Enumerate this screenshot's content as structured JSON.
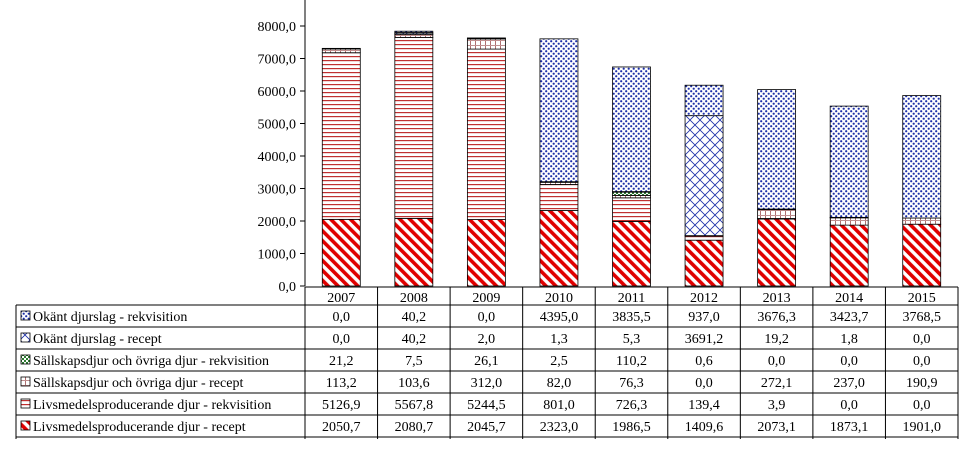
{
  "chart_data": {
    "type": "bar",
    "stacked": true,
    "title": "",
    "xlabel": "",
    "ylabel": "",
    "ylim": [
      0,
      8000
    ],
    "y_ticks": [
      "0,0",
      "1000,0",
      "2000,0",
      "3000,0",
      "4000,0",
      "5000,0",
      "6000,0",
      "7000,0",
      "8000,0"
    ],
    "categories": [
      "2007",
      "2008",
      "2009",
      "2010",
      "2011",
      "2012",
      "2013",
      "2014",
      "2015"
    ],
    "series": [
      {
        "name": "Livsmedelsproducerande djur - recept",
        "color": "#e00000",
        "pattern": "diagonal-stripes",
        "values": [
          2050.7,
          2080.7,
          2045.7,
          2323.0,
          1986.5,
          1409.6,
          2073.1,
          1873.1,
          1901.0
        ],
        "labels": [
          "2050,7",
          "2080,7",
          "2045,7",
          "2323,0",
          "1986,5",
          "1409,6",
          "2073,1",
          "1873,1",
          "1901,0"
        ]
      },
      {
        "name": "Livsmedelsproducerande djur - rekvisition",
        "color": "#c03030",
        "pattern": "horizontal-lines",
        "values": [
          5126.9,
          5567.8,
          5244.5,
          801.0,
          726.3,
          139.4,
          3.9,
          0.0,
          0.0
        ],
        "labels": [
          "5126,9",
          "5567,8",
          "5244,5",
          "801,0",
          "726,3",
          "139,4",
          "3,9",
          "0,0",
          "0,0"
        ]
      },
      {
        "name": "Sällskapsdjur och övriga djur - recept",
        "color": "#b07070",
        "pattern": "light-grid",
        "values": [
          113.2,
          103.6,
          312.0,
          82.0,
          76.3,
          0.0,
          272.1,
          237.0,
          190.9
        ],
        "labels": [
          "113,2",
          "103,6",
          "312,0",
          "82,0",
          "76,3",
          "0,0",
          "272,1",
          "237,0",
          "190,9"
        ]
      },
      {
        "name": "Sällskapsdjur och övriga djur - rekvisition",
        "color": "#2e7d32",
        "pattern": "dots",
        "values": [
          21.2,
          7.5,
          26.1,
          2.5,
          110.2,
          0.6,
          0.0,
          0.0,
          0.0
        ],
        "labels": [
          "21,2",
          "7,5",
          "26,1",
          "2,5",
          "110,2",
          "0,6",
          "0,0",
          "0,0",
          "0,0"
        ]
      },
      {
        "name": "Okänt djurslag - recept",
        "color": "#1c2fa8",
        "pattern": "crosshatch",
        "values": [
          0.0,
          40.2,
          2.0,
          1.3,
          5.3,
          3691.2,
          19.2,
          1.8,
          0.0
        ],
        "labels": [
          "0,0",
          "40,2",
          "2,0",
          "1,3",
          "5,3",
          "3691,2",
          "19,2",
          "1,8",
          "0,0"
        ]
      },
      {
        "name": "Okänt djurslag - rekvisition",
        "color": "#1c2fa8",
        "pattern": "dense-dots",
        "values": [
          0.0,
          40.2,
          0.0,
          4395.0,
          3835.5,
          937.0,
          3676.3,
          3423.7,
          3768.5
        ],
        "labels": [
          "0,0",
          "40,2",
          "0,0",
          "4395,0",
          "3835,5",
          "937,0",
          "3676,3",
          "3423,7",
          "3768,5"
        ]
      }
    ],
    "table_row_order": [
      5,
      4,
      3,
      2,
      1,
      0
    ],
    "grid": false,
    "legend": "in data table rows"
  }
}
